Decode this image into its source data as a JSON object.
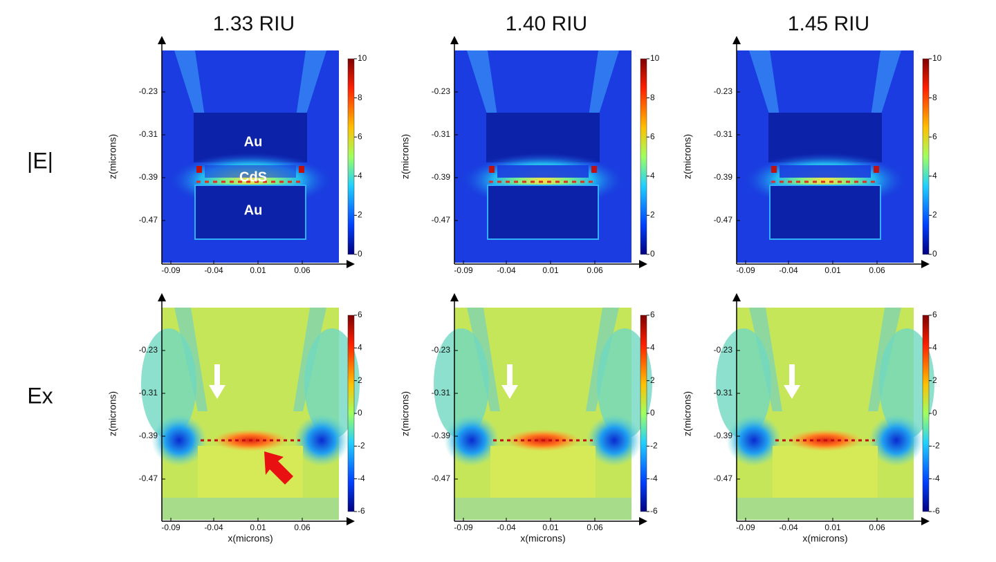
{
  "column_titles": [
    "1.33 RIU",
    "1.40 RIU",
    "1.45 RIU"
  ],
  "row_labels": [
    "|E|",
    "Ex"
  ],
  "axes": {
    "x_label": "x(microns)",
    "y_label": "z(microns)",
    "x_ticks": [
      "-0.09",
      "-0.04",
      "0.01",
      "0.06"
    ],
    "y_ticks": [
      "-0.23",
      "-0.31",
      "-0.39",
      "-0.47"
    ]
  },
  "colorbars": {
    "E": [
      "10",
      "8",
      "6",
      "4",
      "2",
      "0"
    ],
    "Ex": [
      "6",
      "4",
      "2",
      "0",
      "-2",
      "-4",
      "-6"
    ]
  },
  "region_labels": [
    "Au",
    "CdS",
    "Au"
  ]
}
